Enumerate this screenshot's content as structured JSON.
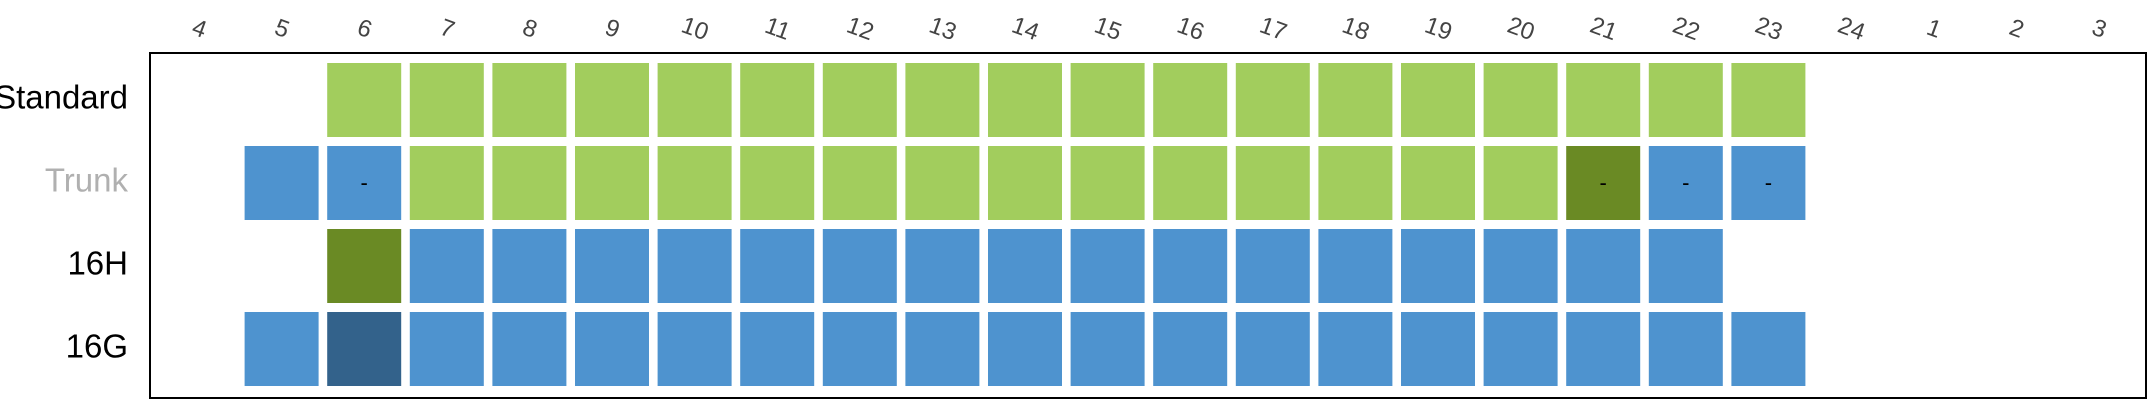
{
  "chart_data": {
    "type": "heatmap",
    "title": "",
    "xlabel": "",
    "ylabel": "",
    "columns": [
      "4",
      "5",
      "6",
      "7",
      "8",
      "9",
      "10",
      "11",
      "12",
      "13",
      "14",
      "15",
      "16",
      "17",
      "18",
      "19",
      "20",
      "21",
      "22",
      "23",
      "24",
      "1",
      "2",
      "3"
    ],
    "legend": "none",
    "colors": {
      "light_green": "#a2cd5d",
      "dark_green": "#6a8a24",
      "blue": "#4e93cf",
      "dark_blue": "#33628b",
      "frame": "#000000",
      "muted_label": "#b0b0b0",
      "label": "#000000"
    },
    "rows": [
      {
        "label": "Standard",
        "label_muted": false,
        "cells": [
          {
            "col": "6",
            "status": "light_green"
          },
          {
            "col": "7",
            "status": "light_green"
          },
          {
            "col": "8",
            "status": "light_green"
          },
          {
            "col": "9",
            "status": "light_green"
          },
          {
            "col": "10",
            "status": "light_green"
          },
          {
            "col": "11",
            "status": "light_green"
          },
          {
            "col": "12",
            "status": "light_green"
          },
          {
            "col": "13",
            "status": "light_green"
          },
          {
            "col": "14",
            "status": "light_green"
          },
          {
            "col": "15",
            "status": "light_green"
          },
          {
            "col": "16",
            "status": "light_green"
          },
          {
            "col": "17",
            "status": "light_green"
          },
          {
            "col": "18",
            "status": "light_green"
          },
          {
            "col": "19",
            "status": "light_green"
          },
          {
            "col": "20",
            "status": "light_green"
          },
          {
            "col": "21",
            "status": "light_green"
          },
          {
            "col": "22",
            "status": "light_green"
          },
          {
            "col": "23",
            "status": "light_green"
          }
        ]
      },
      {
        "label": "Trunk",
        "label_muted": true,
        "cells": [
          {
            "col": "5",
            "status": "blue"
          },
          {
            "col": "6",
            "status": "blue",
            "text": "-"
          },
          {
            "col": "7",
            "status": "light_green"
          },
          {
            "col": "8",
            "status": "light_green"
          },
          {
            "col": "9",
            "status": "light_green"
          },
          {
            "col": "10",
            "status": "light_green"
          },
          {
            "col": "11",
            "status": "light_green"
          },
          {
            "col": "12",
            "status": "light_green"
          },
          {
            "col": "13",
            "status": "light_green"
          },
          {
            "col": "14",
            "status": "light_green"
          },
          {
            "col": "15",
            "status": "light_green"
          },
          {
            "col": "16",
            "status": "light_green"
          },
          {
            "col": "17",
            "status": "light_green"
          },
          {
            "col": "18",
            "status": "light_green"
          },
          {
            "col": "19",
            "status": "light_green"
          },
          {
            "col": "20",
            "status": "light_green"
          },
          {
            "col": "21",
            "status": "dark_green",
            "text": "-"
          },
          {
            "col": "22",
            "status": "blue",
            "text": "-"
          },
          {
            "col": "23",
            "status": "blue",
            "text": "-"
          }
        ]
      },
      {
        "label": "16H",
        "label_muted": false,
        "cells": [
          {
            "col": "6",
            "status": "dark_green"
          },
          {
            "col": "7",
            "status": "blue"
          },
          {
            "col": "8",
            "status": "blue"
          },
          {
            "col": "9",
            "status": "blue"
          },
          {
            "col": "10",
            "status": "blue"
          },
          {
            "col": "11",
            "status": "blue"
          },
          {
            "col": "12",
            "status": "blue"
          },
          {
            "col": "13",
            "status": "blue"
          },
          {
            "col": "14",
            "status": "blue"
          },
          {
            "col": "15",
            "status": "blue"
          },
          {
            "col": "16",
            "status": "blue"
          },
          {
            "col": "17",
            "status": "blue"
          },
          {
            "col": "18",
            "status": "blue"
          },
          {
            "col": "19",
            "status": "blue"
          },
          {
            "col": "20",
            "status": "blue"
          },
          {
            "col": "21",
            "status": "blue"
          },
          {
            "col": "22",
            "status": "blue"
          }
        ]
      },
      {
        "label": "16G",
        "label_muted": false,
        "cells": [
          {
            "col": "5",
            "status": "blue"
          },
          {
            "col": "6",
            "status": "dark_blue"
          },
          {
            "col": "7",
            "status": "blue"
          },
          {
            "col": "8",
            "status": "blue"
          },
          {
            "col": "9",
            "status": "blue"
          },
          {
            "col": "10",
            "status": "blue"
          },
          {
            "col": "11",
            "status": "blue"
          },
          {
            "col": "12",
            "status": "blue"
          },
          {
            "col": "13",
            "status": "blue"
          },
          {
            "col": "14",
            "status": "blue"
          },
          {
            "col": "15",
            "status": "blue"
          },
          {
            "col": "16",
            "status": "blue"
          },
          {
            "col": "17",
            "status": "blue"
          },
          {
            "col": "18",
            "status": "blue"
          },
          {
            "col": "19",
            "status": "blue"
          },
          {
            "col": "20",
            "status": "blue"
          },
          {
            "col": "21",
            "status": "blue"
          },
          {
            "col": "22",
            "status": "blue"
          },
          {
            "col": "23",
            "status": "blue"
          }
        ]
      }
    ]
  }
}
